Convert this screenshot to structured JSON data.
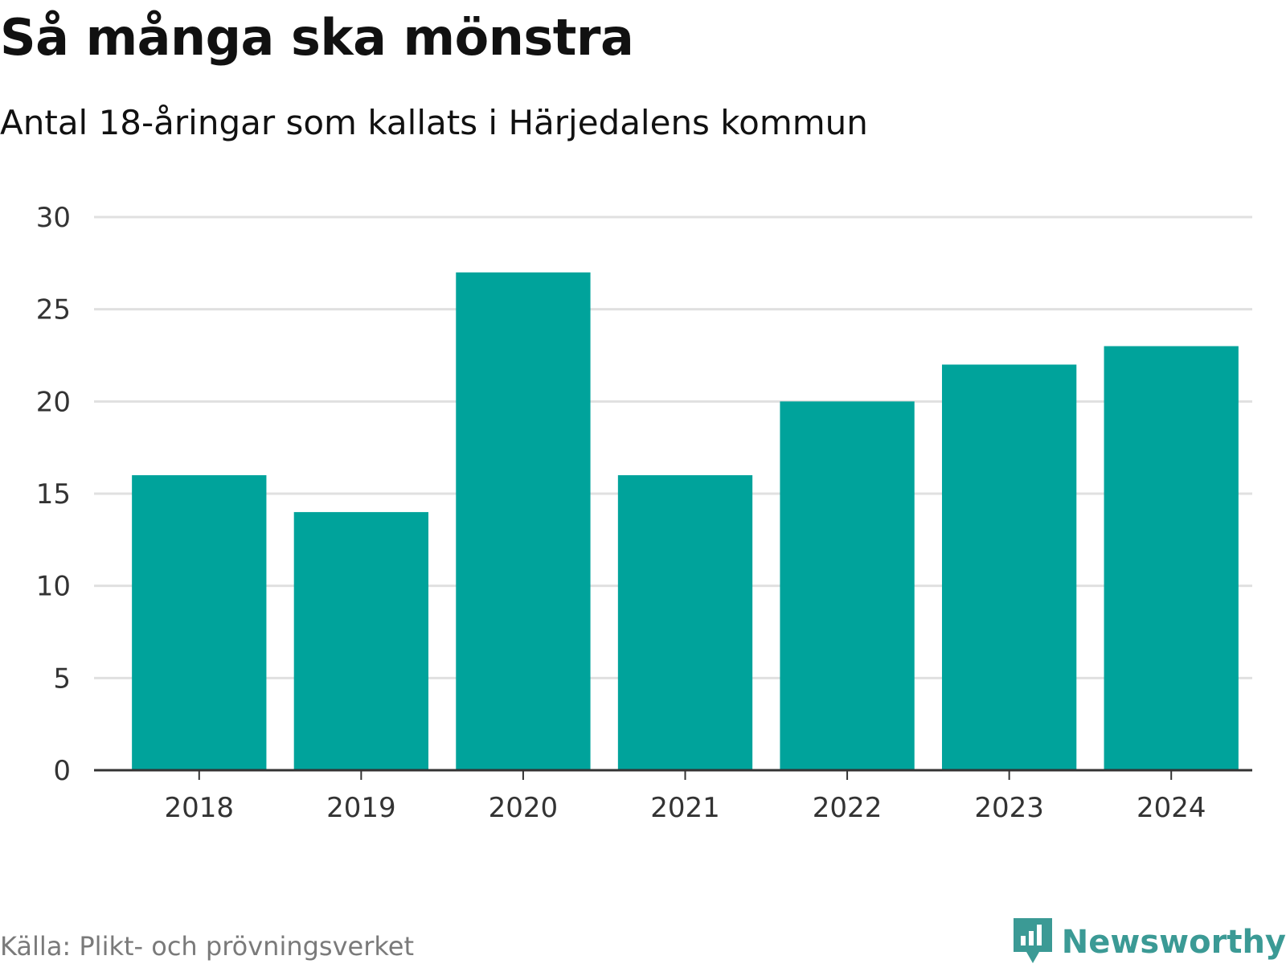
{
  "header": {
    "title": "Så många ska mönstra",
    "subtitle": "Antal 18-åringar som kallats i Härjedalens kommun"
  },
  "footer": {
    "source": "Källa: Plikt- och prövningsverket",
    "brand": "Newsworthy",
    "brand_icon": "newsworthy-logo-icon"
  },
  "colors": {
    "bar": "#00a39b",
    "grid": "#e0e0e0",
    "axis": "#333333",
    "brand": "#3b9a95"
  },
  "chart_data": {
    "type": "bar",
    "title": "Så många ska mönstra",
    "subtitle": "Antal 18-åringar som kallats i Härjedalens kommun",
    "xlabel": "",
    "ylabel": "",
    "categories": [
      "2018",
      "2019",
      "2020",
      "2021",
      "2022",
      "2023",
      "2024"
    ],
    "values": [
      16,
      14,
      27,
      16,
      20,
      22,
      23
    ],
    "ylim": [
      0,
      30
    ],
    "yticks": [
      0,
      5,
      10,
      15,
      20,
      25,
      30
    ],
    "grid": true,
    "legend": "none"
  }
}
